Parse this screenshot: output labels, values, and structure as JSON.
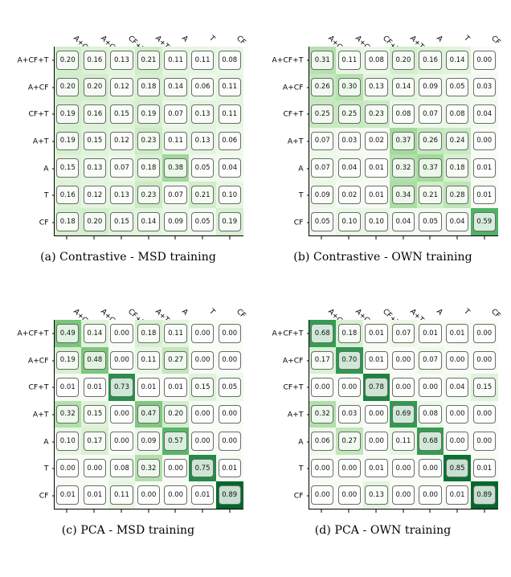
{
  "layout": {
    "figure_width": 636,
    "figure_height": 718,
    "panel_cols": 2,
    "panel_rows": 2
  },
  "axis_labels": [
    "A+CF+T",
    "A+CF",
    "CF+T",
    "A+T",
    "A",
    "T",
    "CF"
  ],
  "cell_style": {
    "border_color": "#6b6b6b",
    "border_radius": 4,
    "overlay_bg": "rgba(255,255,255,0.78)",
    "font_family": "DejaVu Sans",
    "font_size": 8.5
  },
  "colormap": {
    "name": "Greens",
    "min_color": "#f7fcf5",
    "max_color": "#00441b",
    "vmin": 0.0,
    "vmax": 1.0
  },
  "panels": [
    {
      "id": "a",
      "caption": "(a) Contrastive - MSD training",
      "data": [
        [
          0.2,
          0.16,
          0.13,
          0.21,
          0.11,
          0.11,
          0.08
        ],
        [
          0.2,
          0.2,
          0.12,
          0.18,
          0.14,
          0.06,
          0.11
        ],
        [
          0.19,
          0.16,
          0.15,
          0.19,
          0.07,
          0.13,
          0.11
        ],
        [
          0.19,
          0.15,
          0.12,
          0.23,
          0.11,
          0.13,
          0.06
        ],
        [
          0.15,
          0.13,
          0.07,
          0.18,
          0.38,
          0.05,
          0.04
        ],
        [
          0.16,
          0.12,
          0.13,
          0.23,
          0.07,
          0.21,
          0.1
        ],
        [
          0.18,
          0.2,
          0.15,
          0.14,
          0.09,
          0.05,
          0.19
        ]
      ]
    },
    {
      "id": "b",
      "caption": "(b) Contrastive - OWN training",
      "data": [
        [
          0.31,
          0.11,
          0.08,
          0.2,
          0.16,
          0.14,
          0.0
        ],
        [
          0.26,
          0.3,
          0.13,
          0.14,
          0.09,
          0.05,
          0.03
        ],
        [
          0.25,
          0.25,
          0.23,
          0.08,
          0.07,
          0.08,
          0.04
        ],
        [
          0.07,
          0.03,
          0.02,
          0.37,
          0.26,
          0.24,
          0.0
        ],
        [
          0.07,
          0.04,
          0.01,
          0.32,
          0.37,
          0.18,
          0.01
        ],
        [
          0.09,
          0.02,
          0.01,
          0.34,
          0.21,
          0.28,
          0.01
        ],
        [
          0.05,
          0.1,
          0.1,
          0.04,
          0.05,
          0.04,
          0.59
        ]
      ]
    },
    {
      "id": "c",
      "caption": "(c) PCA - MSD training",
      "data": [
        [
          0.49,
          0.14,
          0.0,
          0.18,
          0.11,
          0.0,
          0.0
        ],
        [
          0.19,
          0.48,
          0.0,
          0.11,
          0.27,
          0.0,
          0.0
        ],
        [
          0.01,
          0.01,
          0.73,
          0.01,
          0.01,
          0.15,
          0.05
        ],
        [
          0.32,
          0.15,
          0.0,
          0.47,
          0.2,
          0.0,
          0.0
        ],
        [
          0.1,
          0.17,
          0.0,
          0.09,
          0.57,
          0.0,
          0.0
        ],
        [
          0.0,
          0.0,
          0.08,
          0.32,
          0.0,
          0.75,
          0.01
        ],
        [
          0.01,
          0.01,
          0.11,
          0.0,
          0.0,
          0.01,
          0.89
        ]
      ]
    },
    {
      "id": "d",
      "caption": "(d) PCA - OWN training",
      "data": [
        [
          0.68,
          0.18,
          0.01,
          0.07,
          0.01,
          0.01,
          0.0
        ],
        [
          0.17,
          0.7,
          0.01,
          0.0,
          0.07,
          0.0,
          0.0
        ],
        [
          0.0,
          0.0,
          0.78,
          0.0,
          0.0,
          0.04,
          0.15
        ],
        [
          0.32,
          0.03,
          0.0,
          0.69,
          0.08,
          0.0,
          0.0
        ],
        [
          0.06,
          0.27,
          0.0,
          0.11,
          0.68,
          0.0,
          0.0
        ],
        [
          0.0,
          0.0,
          0.01,
          0.0,
          0.0,
          0.85,
          0.01
        ],
        [
          0.0,
          0.0,
          0.13,
          0.0,
          0.0,
          0.01,
          0.89
        ]
      ]
    }
  ]
}
